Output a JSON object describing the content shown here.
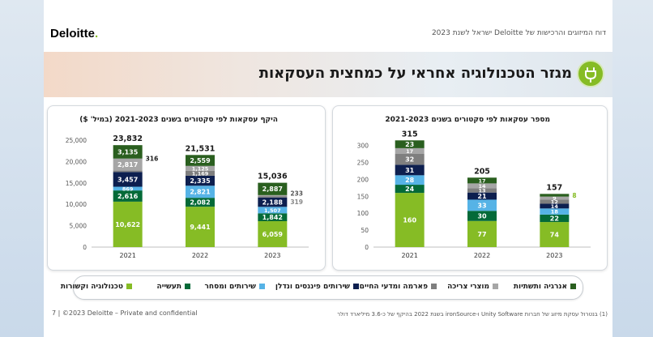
{
  "header": {
    "logo_text": "Deloitte",
    "logo_dot": ".",
    "note": "דוח המיזוגים והרכישות של Deloitte ישראל לשנת 2023"
  },
  "banner": {
    "title": "מגזר הטכנולוגיה אחראי על כמחצית העסקאות",
    "icon": "plug-icon"
  },
  "legend": {
    "items": [
      {
        "label": "אנרגיה ותשתיות",
        "color": "#2a5f1f"
      },
      {
        "label": "מוצרי צריכה",
        "color": "#a6a6a6"
      },
      {
        "label": "פארמה ומדעי החיים",
        "color": "#7f7f7f"
      },
      {
        "label": "שירותים פיננסים ונדלן",
        "color": "#0d1f4f"
      },
      {
        "label": "שירותים ומסחר",
        "color": "#56b3e6"
      },
      {
        "label": "תעשייה",
        "color": "#046a38"
      },
      {
        "label": "טכנולוגיה וקשורות",
        "color": "#86bc25"
      }
    ]
  },
  "footer": {
    "left": "7  |  ©2023 Deloitte – Private and confidential",
    "right": "(1) בנטרול עסקת מיזוג של חברות Unity Software ו-ironSource בשנת 2022 בהיקף של כ-3.6 מיליארד דולר"
  },
  "chart_data": [
    {
      "type": "bar",
      "title": "היקף עסקאות לפי סקטורים בשנים 2021-2023 (במיל' $)",
      "categories": [
        "2021",
        "2022",
        "2023"
      ],
      "ylim": [
        0,
        25000
      ],
      "yticks": [
        "0",
        "5,000",
        "10,000",
        "15,000",
        "20,000",
        "25,000"
      ],
      "ytick_values": [
        0,
        5000,
        10000,
        15000,
        20000,
        25000
      ],
      "totals": [
        "23,832",
        "21,531",
        "15,036"
      ],
      "series": [
        {
          "name": "טכנולוגיה וקשורות",
          "color": "#86bc25",
          "text_color": "#ffffff",
          "values": [
            10622,
            9441,
            6059
          ],
          "labels": [
            "10,622",
            "9,441",
            "6,059"
          ]
        },
        {
          "name": "תעשייה",
          "color": "#046a38",
          "text_color": "#ffffff",
          "values": [
            2616,
            2082,
            1842
          ],
          "labels": [
            "2,616",
            "2,082",
            "1,842"
          ]
        },
        {
          "name": "שירותים ומסחר",
          "color": "#56b3e6",
          "text_color": "#ffffff",
          "values": [
            869,
            2821,
            1507
          ],
          "labels": [
            "869",
            "2,821",
            "1,507"
          ]
        },
        {
          "name": "שירותים פיננסים ונדלן",
          "color": "#0d1f4f",
          "text_color": "#ffffff",
          "values": [
            3457,
            2335,
            2188
          ],
          "labels": [
            "3,457",
            "2,335",
            "2,188"
          ]
        },
        {
          "name": "פארמה ומדעי החיים",
          "color": "#7f7f7f",
          "text_color": "#ffffff",
          "values": [
            316,
            1169,
            319
          ],
          "labels": [
            "316",
            "1,169",
            "319"
          ]
        },
        {
          "name": "מוצרי צריכה",
          "color": "#a6a6a6",
          "text_color": "#ffffff",
          "values": [
            2817,
            1125,
            233
          ],
          "labels": [
            "2,817",
            "1,125",
            "233"
          ]
        },
        {
          "name": "אנרגיה ותשתיות",
          "color": "#2a5f1f",
          "text_color": "#ffffff",
          "values": [
            3135,
            2559,
            2887
          ],
          "labels": [
            "3,135",
            "2,559",
            "2,887"
          ]
        }
      ]
    },
    {
      "type": "bar",
      "title": "מספר עסקאות לפי סקטורים בשנים 2021-2023",
      "categories": [
        "2021",
        "2022",
        "2023"
      ],
      "ylim": [
        0,
        330
      ],
      "yticks": [
        "0",
        "50",
        "100",
        "150",
        "200",
        "250",
        "300"
      ],
      "ytick_values": [
        0,
        50,
        100,
        150,
        200,
        250,
        300
      ],
      "totals": [
        "315",
        "205",
        "157"
      ],
      "series": [
        {
          "name": "טכנולוגיה וקשורות",
          "color": "#86bc25",
          "text_color": "#ffffff",
          "values": [
            160,
            77,
            74
          ],
          "labels": [
            "160",
            "77",
            "74"
          ]
        },
        {
          "name": "תעשייה",
          "color": "#046a38",
          "text_color": "#ffffff",
          "values": [
            24,
            30,
            22
          ],
          "labels": [
            "24",
            "30",
            "22"
          ]
        },
        {
          "name": "שירותים ומסחר",
          "color": "#56b3e6",
          "text_color": "#ffffff",
          "values": [
            28,
            33,
            18
          ],
          "labels": [
            "28",
            "33",
            "18"
          ]
        },
        {
          "name": "שירותים פיננסים ונדלן",
          "color": "#0d1f4f",
          "text_color": "#ffffff",
          "values": [
            31,
            21,
            14
          ],
          "labels": [
            "31",
            "21",
            "14"
          ]
        },
        {
          "name": "פארמה ומדעי החיים",
          "color": "#7f7f7f",
          "text_color": "#ffffff",
          "values": [
            32,
            13,
            12
          ],
          "labels": [
            "32",
            "13",
            "12"
          ]
        },
        {
          "name": "מוצרי צריכה",
          "color": "#a6a6a6",
          "text_color": "#ffffff",
          "values": [
            17,
            14,
            9
          ],
          "labels": [
            "17",
            "14",
            "9"
          ]
        },
        {
          "name": "אנרגיה ותשתיות",
          "color": "#2a5f1f",
          "text_color": "#ffffff",
          "values": [
            23,
            17,
            8
          ],
          "labels": [
            "23",
            "17",
            "8"
          ]
        }
      ]
    }
  ]
}
